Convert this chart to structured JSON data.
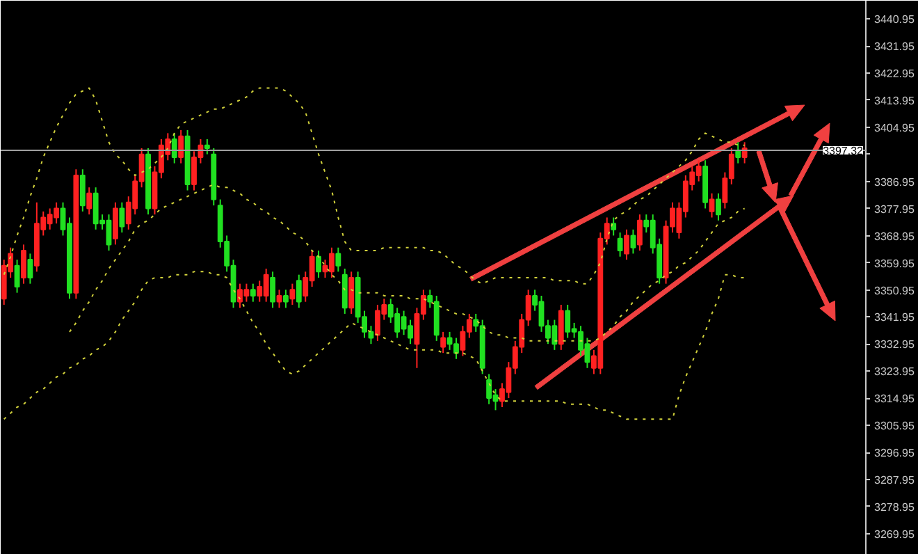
{
  "chart_data": {
    "type": "candlestick",
    "categories": [
      null,
      null,
      null,
      null,
      null,
      null,
      null,
      null,
      null,
      null,
      null,
      null,
      null,
      null,
      null,
      null,
      null,
      null,
      null,
      null,
      null,
      null,
      null,
      null,
      null,
      null,
      null,
      null,
      null,
      null,
      null,
      null,
      null,
      null,
      null,
      null,
      null,
      null,
      null,
      null,
      null,
      null,
      null,
      null,
      null,
      null,
      null,
      null,
      null,
      null,
      null,
      null,
      null,
      null,
      null,
      null,
      null,
      null,
      null,
      null,
      null,
      null,
      null,
      null,
      null,
      null,
      null,
      null,
      null,
      null,
      null,
      null,
      null,
      null,
      null,
      null,
      null,
      null,
      null,
      null,
      null,
      null,
      null,
      null,
      null,
      null,
      null,
      null,
      null,
      null,
      null,
      null,
      null,
      null,
      null,
      null,
      null,
      null,
      null,
      null,
      null,
      null,
      null,
      null,
      null,
      null,
      null,
      null,
      null,
      null,
      null,
      null,
      null,
      null,
      null,
      null,
      null,
      null,
      null,
      null,
      null,
      null,
      null,
      null,
      null,
      null,
      null,
      null,
      null,
      null,
      null,
      null
    ],
    "ohlc": [
      [
        3348,
        3361,
        3346,
        3359
      ],
      [
        3357,
        3365,
        3355,
        3363
      ],
      [
        3359,
        3361,
        3350,
        3352
      ],
      [
        3355,
        3366,
        3353,
        3364
      ],
      [
        3361,
        3363,
        3353,
        3355
      ],
      [
        3359,
        3380,
        3357,
        3373
      ],
      [
        3371,
        3377,
        3369,
        3375
      ],
      [
        3373,
        3378,
        3371,
        3376
      ],
      [
        3375,
        3380,
        3373,
        3378
      ],
      [
        3378,
        3380,
        3369,
        3371
      ],
      [
        3373,
        3375,
        3348,
        3350
      ],
      [
        3350,
        3391,
        3348,
        3389
      ],
      [
        3389,
        3391,
        3377,
        3379
      ],
      [
        3378,
        3385,
        3376,
        3383
      ],
      [
        3383,
        3385,
        3371,
        3373
      ],
      [
        3374,
        3376,
        3371,
        3373
      ],
      [
        3374,
        3376,
        3364,
        3366
      ],
      [
        3368,
        3380,
        3366,
        3378
      ],
      [
        3378,
        3380,
        3370,
        3372
      ],
      [
        3373,
        3382,
        3371,
        3380
      ],
      [
        3378,
        3389,
        3376,
        3387
      ],
      [
        3387,
        3398,
        3385,
        3396
      ],
      [
        3396,
        3398,
        3376,
        3378
      ],
      [
        3378,
        3392,
        3376,
        3390
      ],
      [
        3390,
        3401,
        3388,
        3399
      ],
      [
        3396,
        3403,
        3394,
        3401
      ],
      [
        3401,
        3403,
        3393,
        3395
      ],
      [
        3395,
        3404,
        3393,
        3402
      ],
      [
        3402,
        3404,
        3384,
        3386
      ],
      [
        3386,
        3397,
        3384,
        3395
      ],
      [
        3395,
        3401,
        3393,
        3399
      ],
      [
        3399,
        3401,
        3396,
        3398
      ],
      [
        3396,
        3398,
        3379,
        3381
      ],
      [
        3379,
        3381,
        3365,
        3367
      ],
      [
        3367,
        3369,
        3357,
        3359
      ],
      [
        3359,
        3361,
        3345,
        3347
      ],
      [
        3347,
        3353,
        3345,
        3351
      ],
      [
        3349,
        3353,
        3347,
        3351
      ],
      [
        3351,
        3353,
        3347,
        3349
      ],
      [
        3349,
        3354,
        3347,
        3352
      ],
      [
        3349,
        3358,
        3347,
        3356
      ],
      [
        3355,
        3357,
        3345,
        3347
      ],
      [
        3347,
        3351,
        3345,
        3349
      ],
      [
        3349,
        3351,
        3345,
        3347
      ],
      [
        3348,
        3353,
        3346,
        3351
      ],
      [
        3354,
        3356,
        3345,
        3347
      ],
      [
        3349,
        3357,
        3347,
        3355
      ],
      [
        3354,
        3364,
        3352,
        3362
      ],
      [
        3362,
        3364,
        3355,
        3357
      ],
      [
        3357,
        3361,
        3355,
        3359
      ],
      [
        3357,
        3365,
        3355,
        3363
      ],
      [
        3363,
        3365,
        3357,
        3359
      ],
      [
        3356,
        3358,
        3343,
        3345
      ],
      [
        3345,
        3357,
        3343,
        3355
      ],
      [
        3355,
        3357,
        3340,
        3342
      ],
      [
        3342,
        3344,
        3335,
        3337
      ],
      [
        3337,
        3339,
        3333,
        3335
      ],
      [
        3336,
        3346,
        3334,
        3344
      ],
      [
        3343,
        3348,
        3341,
        3346
      ],
      [
        3346,
        3348,
        3340,
        3342
      ],
      [
        3343,
        3345,
        3335,
        3337
      ],
      [
        3342,
        3344,
        3336,
        3338
      ],
      [
        3339,
        3341,
        3333,
        3335
      ],
      [
        3333,
        3345,
        3325,
        3343
      ],
      [
        3343,
        3351,
        3341,
        3349
      ],
      [
        3349,
        3351,
        3345,
        3347
      ],
      [
        3347,
        3349,
        3334,
        3336
      ],
      [
        3332,
        3337,
        3330,
        3335
      ],
      [
        3335,
        3337,
        3331,
        3333
      ],
      [
        3333,
        3335,
        3328,
        3330
      ],
      [
        3331,
        3339,
        3329,
        3337
      ],
      [
        3337,
        3343,
        3335,
        3341
      ],
      [
        3341,
        3343,
        3337,
        3339
      ],
      [
        3339,
        3341,
        3323,
        3325
      ],
      [
        3321,
        3323,
        3313,
        3315
      ],
      [
        3316,
        3318,
        3311,
        3314
      ],
      [
        3314,
        3320,
        3312,
        3318
      ],
      [
        3317,
        3327,
        3315,
        3325
      ],
      [
        3325,
        3334,
        3323,
        3332
      ],
      [
        3332,
        3343,
        3330,
        3341
      ],
      [
        3341,
        3351,
        3339,
        3349
      ],
      [
        3349,
        3351,
        3344,
        3346
      ],
      [
        3347,
        3349,
        3337,
        3339
      ],
      [
        3339,
        3341,
        3333,
        3335
      ],
      [
        3339,
        3341,
        3331,
        3333
      ],
      [
        3333,
        3346,
        3331,
        3344
      ],
      [
        3344,
        3346,
        3335,
        3337
      ],
      [
        3338,
        3340,
        3335,
        3337
      ],
      [
        3337,
        3339,
        3329,
        3331
      ],
      [
        3333,
        3335,
        3325,
        3327
      ],
      [
        3325,
        3331,
        3323,
        3329
      ],
      [
        3325,
        3370,
        3323,
        3368
      ],
      [
        3368,
        3375,
        3366,
        3373
      ],
      [
        3373,
        3375,
        3369,
        3371
      ],
      [
        3368,
        3370,
        3362,
        3364
      ],
      [
        3363,
        3371,
        3361,
        3369
      ],
      [
        3369,
        3371,
        3363,
        3365
      ],
      [
        3366,
        3376,
        3364,
        3374
      ],
      [
        3374,
        3376,
        3370,
        3372
      ],
      [
        3374,
        3376,
        3363,
        3365
      ],
      [
        3366,
        3368,
        3353,
        3355
      ],
      [
        3355,
        3374,
        3353,
        3372
      ],
      [
        3372,
        3380,
        3370,
        3378
      ],
      [
        3370,
        3380,
        3368,
        3378
      ],
      [
        3377,
        3389,
        3375,
        3387
      ],
      [
        3386,
        3392,
        3384,
        3390
      ],
      [
        3389,
        3394,
        3387,
        3392
      ],
      [
        3392,
        3394,
        3378,
        3380
      ],
      [
        3377,
        3383,
        3375,
        3381
      ],
      [
        3381,
        3383,
        3374,
        3376
      ],
      [
        3380,
        3390,
        3378,
        3388
      ],
      [
        3388,
        3398,
        3386,
        3396
      ],
      [
        3397,
        3400,
        3393,
        3395
      ],
      [
        3395,
        3400,
        3393,
        3398
      ],
      null,
      null,
      null,
      null,
      null,
      null,
      null,
      null,
      null,
      null,
      null,
      null,
      null,
      null,
      null,
      null,
      null,
      null
    ],
    "colors": [
      "#ff2121",
      "#ff2121",
      "#21e021",
      "#ff2121",
      "#21e021",
      "#ff2121",
      "#ff2121",
      "#ff2121",
      "#ff2121",
      "#21e021",
      "#21e021",
      "#ff2121",
      "#21e021",
      "#ff2121",
      "#21e021",
      "#21e021",
      "#21e021",
      "#ff2121",
      "#21e021",
      "#ff2121",
      "#ff2121",
      "#ff2121",
      "#21e021",
      "#ff2121",
      "#ff2121",
      "#ff2121",
      "#21e021",
      "#ff2121",
      "#21e021",
      "#ff2121",
      "#ff2121",
      "#21e021",
      "#21e021",
      "#21e021",
      "#21e021",
      "#21e021",
      "#ff2121",
      "#ff2121",
      "#21e021",
      "#ff2121",
      "#ff2121",
      "#21e021",
      "#ff2121",
      "#21e021",
      "#ff2121",
      "#21e021",
      "#ff2121",
      "#ff2121",
      "#21e021",
      "#ff2121",
      "#ff2121",
      "#21e021",
      "#21e021",
      "#ff2121",
      "#21e021",
      "#21e021",
      "#21e021",
      "#ff2121",
      "#ff2121",
      "#21e021",
      "#21e021",
      "#21e021",
      "#21e021",
      "#ff2121",
      "#ff2121",
      "#21e021",
      "#21e021",
      "#ff2121",
      "#21e021",
      "#21e021",
      "#ff2121",
      "#ff2121",
      "#21e021",
      "#21e021",
      "#21e021",
      "#21e021",
      "#ff2121",
      "#ff2121",
      "#ff2121",
      "#ff2121",
      "#ff2121",
      "#21e021",
      "#21e021",
      "#21e021",
      "#21e021",
      "#ff2121",
      "#21e021",
      "#21e021",
      "#21e021",
      "#21e021",
      "#ff2121",
      "#ff2121",
      "#ff2121",
      "#21e021",
      "#21e021",
      "#ff2121",
      "#21e021",
      "#ff2121",
      "#21e021",
      "#21e021",
      "#21e021",
      "#ff2121",
      "#ff2121",
      "#ff2121",
      "#ff2121",
      "#ff2121",
      "#ff2121",
      "#21e021",
      "#ff2121",
      "#21e021",
      "#ff2121",
      "#ff2121",
      "#21e021",
      "#ff2121",
      null,
      null,
      null,
      null,
      null,
      null,
      null,
      null,
      null,
      null,
      null,
      null,
      null,
      null,
      null,
      null,
      null,
      null
    ],
    "series": [
      {
        "type": "line",
        "color": "#d2d23c",
        "line_style": "dotted",
        "values": [
          3356,
          3362,
          3369,
          3375,
          3382,
          3388,
          3395,
          3400,
          3405,
          3409,
          3413,
          3416,
          3417,
          3418,
          3414,
          3407,
          3400,
          3396,
          3394,
          3391,
          3389,
          3390,
          3391,
          3393,
          3395,
          3398,
          3403,
          3406,
          3407,
          3408,
          3409,
          3410,
          3411,
          3411,
          3412,
          3413,
          3414,
          3415,
          3417,
          3418,
          3418,
          3418,
          3418,
          3417,
          3415,
          3413,
          3410,
          3403,
          3396,
          3390,
          3384,
          3375,
          3367,
          3364,
          3364,
          3364,
          3364,
          3364,
          3365,
          3365,
          3365,
          3365,
          3365,
          3365,
          3365,
          3364,
          3364,
          3363,
          3361,
          3359,
          3358,
          3356,
          3354,
          3353,
          3354,
          3355,
          3355,
          3355,
          3355,
          3355,
          3355,
          3355,
          3355,
          3355,
          3354,
          3354,
          3354,
          3354,
          3353,
          3353,
          3356,
          3360,
          3368,
          3374,
          3376,
          3377,
          3379,
          3381,
          3382,
          3384,
          3386,
          3388,
          3390,
          3392,
          3394,
          3397,
          3401,
          3403,
          3402,
          3401,
          3400,
          3400,
          3399,
          3399,
          null,
          null,
          null,
          null,
          null,
          null,
          null,
          null,
          null,
          null,
          null,
          null,
          null,
          null,
          null,
          null,
          null,
          null
        ]
      },
      {
        "type": "line",
        "color": "#d2d23c",
        "line_style": "dotted",
        "values": [
          null,
          null,
          null,
          null,
          null,
          null,
          null,
          null,
          null,
          null,
          3337,
          3340,
          3344,
          3347,
          3351,
          3354,
          3358,
          3361,
          3364,
          3367,
          3371,
          3373,
          3374,
          3376,
          3378,
          3379,
          3380,
          3381,
          3382,
          3383,
          3384,
          3385,
          3386,
          3385,
          3385,
          3384,
          3383,
          3381,
          3380,
          3378,
          3377,
          3375,
          3374,
          3372,
          3370,
          3369,
          3367,
          3364,
          3362,
          3359,
          3356,
          3354,
          3351,
          3351,
          3350,
          3350,
          3350,
          3350,
          3349,
          3349,
          3349,
          3349,
          3348,
          3348,
          3348,
          3347,
          3346,
          3345,
          3344,
          3343,
          3343,
          3342,
          3341,
          3339,
          3337,
          3336,
          3336,
          3335,
          3335,
          3335,
          3334,
          3334,
          3334,
          3334,
          3334,
          3334,
          3334,
          3334,
          3334,
          3334,
          3334,
          3335,
          3337,
          3339,
          3342,
          3344,
          3347,
          3349,
          3351,
          3353,
          3354,
          3356,
          3357,
          3359,
          3360,
          3362,
          3364,
          3367,
          3370,
          3373,
          3374,
          3375,
          3377,
          3378,
          null,
          null,
          null,
          null,
          null,
          null,
          null,
          null,
          null,
          null,
          null,
          null,
          null,
          null,
          null,
          null,
          null,
          null
        ]
      },
      {
        "type": "line",
        "color": "#d2d23c",
        "line_style": "dotted",
        "values": [
          3308,
          3310,
          3312,
          3313,
          3315,
          3317,
          3318,
          3320,
          3322,
          3323,
          3325,
          3326,
          3328,
          3329,
          3331,
          3332,
          3334,
          3337,
          3341,
          3344,
          3347,
          3351,
          3354,
          3355,
          3355,
          3355,
          3356,
          3356,
          3356,
          3357,
          3357,
          3357,
          3356,
          3356,
          3355,
          3351,
          3348,
          3344,
          3340,
          3337,
          3333,
          3330,
          3327,
          3324,
          3323,
          3324,
          3326,
          3328,
          3330,
          3332,
          3334,
          3336,
          3338,
          3340,
          3339,
          3338,
          3337,
          3336,
          3335,
          3334,
          3333,
          3332,
          3331,
          3331,
          3331,
          3331,
          3331,
          3330,
          3330,
          3330,
          3330,
          3329,
          3328,
          3324,
          3320,
          3316,
          3314,
          3314,
          3314,
          3314,
          3314,
          3314,
          3314,
          3314,
          3314,
          3314,
          3313,
          3313,
          3313,
          3313,
          3312,
          3311,
          3311,
          3310,
          3309,
          3308,
          3308,
          3308,
          3308,
          3308,
          3308,
          3308,
          3308,
          3316,
          3322,
          3327,
          3332,
          3337,
          3343,
          3348,
          3356,
          3356,
          3355,
          3355,
          null,
          null,
          null,
          null,
          null,
          null,
          null,
          null,
          null,
          null,
          null,
          null,
          null,
          null,
          null,
          null,
          null,
          null
        ]
      }
    ],
    "ylim": [
      3263,
      3447
    ],
    "yticks": [
      3440.95,
      3431.95,
      3422.95,
      3413.95,
      3404.95,
      {
        "value": 3395.95,
        "label": null
      },
      3386.95,
      3377.95,
      3368.95,
      3359.95,
      3350.95,
      3341.95,
      3332.95,
      3323.95,
      3314.95,
      3305.95,
      3296.95,
      3287.95,
      3278.95,
      3269.95
    ],
    "ref_lines": [
      {
        "axis": "y",
        "value": 3397.32,
        "label": "3397.32",
        "color": "#a0a0a0"
      }
    ],
    "tick_labels": "y"
  }
}
